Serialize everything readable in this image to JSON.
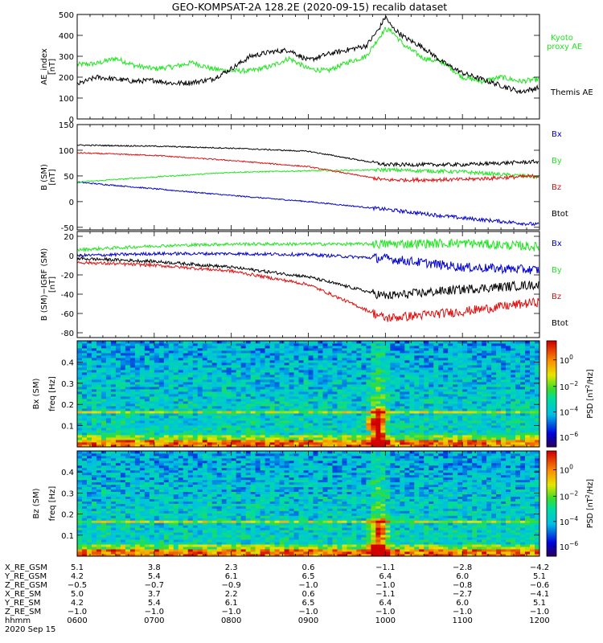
{
  "title": "GEO-KOMPSAT-2A 128.2E (2020-09-15) recalib dataset",
  "colors": {
    "black": "#000000",
    "green": "#1ee61e",
    "red": "#e01010",
    "blue": "#0000d0"
  },
  "chart_data": [
    {
      "type": "line",
      "ylabel": "AE_index",
      "yunit": "[nT]",
      "ylim": [
        0,
        500
      ],
      "yticks": [
        0,
        100,
        200,
        300,
        400,
        500
      ],
      "xlim": [
        "06:00",
        "12:00"
      ],
      "series": [
        {
          "name": "Kyoto proxy AE",
          "color": "green",
          "x": [
            "06:00",
            "06:15",
            "06:30",
            "06:45",
            "07:00",
            "07:15",
            "07:30",
            "07:45",
            "08:00",
            "08:15",
            "08:30",
            "08:45",
            "09:00",
            "09:15",
            "09:30",
            "09:45",
            "09:55",
            "10:00",
            "10:05",
            "10:15",
            "10:30",
            "10:45",
            "11:00",
            "11:15",
            "11:30",
            "11:45",
            "12:00"
          ],
          "values": [
            260,
            265,
            290,
            255,
            240,
            250,
            270,
            240,
            230,
            230,
            250,
            290,
            240,
            230,
            270,
            300,
            390,
            430,
            420,
            350,
            290,
            270,
            200,
            180,
            200,
            180,
            190
          ]
        },
        {
          "name": "Themis AE",
          "color": "black",
          "x": [
            "06:00",
            "06:15",
            "06:30",
            "06:45",
            "07:00",
            "07:15",
            "07:30",
            "07:45",
            "08:00",
            "08:15",
            "08:30",
            "08:45",
            "09:00",
            "09:15",
            "09:30",
            "09:45",
            "09:55",
            "10:00",
            "10:05",
            "10:15",
            "10:30",
            "10:45",
            "11:00",
            "11:15",
            "11:30",
            "11:45",
            "12:00"
          ],
          "values": [
            165,
            200,
            190,
            180,
            185,
            170,
            175,
            190,
            240,
            300,
            320,
            330,
            280,
            310,
            330,
            350,
            430,
            490,
            440,
            390,
            340,
            270,
            220,
            190,
            160,
            130,
            150
          ]
        }
      ]
    },
    {
      "type": "line",
      "ylabel": "B (SM)",
      "yunit": "[nT]",
      "ylim": [
        -55,
        150
      ],
      "yticks": [
        -50,
        0,
        50,
        100,
        150
      ],
      "xlim": [
        "06:00",
        "12:00"
      ],
      "series": [
        {
          "name": "Bx",
          "color": "blue",
          "x": [
            "06:00",
            "07:00",
            "08:00",
            "09:00",
            "10:00",
            "11:00",
            "12:00"
          ],
          "values": [
            38,
            25,
            12,
            0,
            -15,
            -32,
            -45
          ]
        },
        {
          "name": "By",
          "color": "green",
          "x": [
            "06:00",
            "07:00",
            "08:00",
            "09:00",
            "10:00",
            "11:00",
            "12:00"
          ],
          "values": [
            38,
            48,
            57,
            60,
            62,
            58,
            48
          ]
        },
        {
          "name": "Bz",
          "color": "red",
          "x": [
            "06:00",
            "07:00",
            "08:00",
            "09:00",
            "10:00",
            "11:00",
            "12:00"
          ],
          "values": [
            95,
            90,
            80,
            68,
            42,
            43,
            50
          ]
        },
        {
          "name": "Btot",
          "color": "black",
          "x": [
            "06:00",
            "07:00",
            "08:00",
            "09:00",
            "10:00",
            "11:00",
            "12:00"
          ],
          "values": [
            110,
            108,
            104,
            98,
            72,
            72,
            78
          ]
        }
      ]
    },
    {
      "type": "line",
      "ylabel": "B (SM)−IGRF (SM)",
      "yunit": "[nT]",
      "ylim": [
        -85,
        25
      ],
      "yticks": [
        -80,
        -60,
        -40,
        -20,
        0,
        20
      ],
      "xlim": [
        "06:00",
        "12:00"
      ],
      "series": [
        {
          "name": "Bx",
          "color": "blue",
          "x": [
            "06:00",
            "07:00",
            "08:00",
            "09:00",
            "10:00",
            "11:00",
            "12:00"
          ],
          "values": [
            0,
            2,
            2,
            1,
            -3,
            -12,
            -15
          ]
        },
        {
          "name": "By",
          "color": "green",
          "x": [
            "06:00",
            "07:00",
            "08:00",
            "09:00",
            "10:00",
            "11:00",
            "12:00"
          ],
          "values": [
            6,
            10,
            12,
            12,
            12,
            13,
            9
          ]
        },
        {
          "name": "Bz",
          "color": "red",
          "x": [
            "06:00",
            "07:00",
            "08:00",
            "09:00",
            "10:00",
            "11:00",
            "12:00"
          ],
          "values": [
            -7,
            -10,
            -16,
            -30,
            -65,
            -58,
            -48
          ]
        },
        {
          "name": "Btot",
          "color": "black",
          "x": [
            "06:00",
            "07:00",
            "08:00",
            "09:00",
            "10:00",
            "11:00",
            "12:00"
          ],
          "values": [
            -3,
            -6,
            -12,
            -22,
            -42,
            -35,
            -30
          ]
        }
      ]
    },
    {
      "type": "heatmap",
      "ylabel": "Bx (SM)",
      "ylabel2": "freq",
      "yunit": "[Hz]",
      "ylim": [
        0,
        0.5
      ],
      "yticks": [
        "0.1",
        "0.2",
        "0.3",
        "0.4"
      ],
      "colorbar": {
        "label": "PSD",
        "unit": "[nT",
        "unit_sup": "2",
        "unit_end": "/Hz]",
        "ticks": [
          {
            "base": "10",
            "exp": "0"
          },
          {
            "base": "10",
            "exp": "−2"
          },
          {
            "base": "10",
            "exp": "−4"
          },
          {
            "base": "10",
            "exp": "−6"
          }
        ]
      }
    },
    {
      "type": "heatmap",
      "ylabel": "Bz (SM)",
      "ylabel2": "freq",
      "yunit": "[Hz]",
      "ylim": [
        0,
        0.5
      ],
      "yticks": [
        "0.1",
        "0.2",
        "0.3",
        "0.4"
      ],
      "colorbar": {
        "label": "PSD",
        "unit": "[nT",
        "unit_sup": "2",
        "unit_end": "/Hz]",
        "ticks": [
          {
            "base": "10",
            "exp": "0"
          },
          {
            "base": "10",
            "exp": "−2"
          },
          {
            "base": "10",
            "exp": "−4"
          },
          {
            "base": "10",
            "exp": "−6"
          }
        ]
      }
    }
  ],
  "ephemeris": {
    "rows": [
      {
        "label": "X_RE_GSM",
        "values": [
          "5.1",
          "3.8",
          "2.3",
          "0.6",
          "−1.1",
          "−2.8",
          "−4.2"
        ]
      },
      {
        "label": "Y_RE_GSM",
        "values": [
          "4.2",
          "5.4",
          "6.1",
          "6.5",
          "6.4",
          "6.0",
          "5.1"
        ]
      },
      {
        "label": "Z_RE_GSM",
        "values": [
          "−0.5",
          "−0.7",
          "−0.9",
          "−1.0",
          "−1.0",
          "−0.8",
          "−0.6"
        ]
      },
      {
        "label": "X_RE_SM",
        "values": [
          "5.0",
          "3.7",
          "2.2",
          "0.6",
          "−1.1",
          "−2.7",
          "−4.1"
        ]
      },
      {
        "label": "Y_RE_SM",
        "values": [
          "4.2",
          "5.4",
          "6.1",
          "6.5",
          "6.4",
          "6.0",
          "5.1"
        ]
      },
      {
        "label": "Z_RE_SM",
        "values": [
          "−1.0",
          "−1.0",
          "−1.0",
          "−1.0",
          "−1.0",
          "−1.0",
          "−1.0"
        ]
      },
      {
        "label": "hhmm",
        "values": [
          "0600",
          "0700",
          "0800",
          "0900",
          "1000",
          "1100",
          "1200"
        ]
      }
    ],
    "date": "2020 Sep 15"
  }
}
